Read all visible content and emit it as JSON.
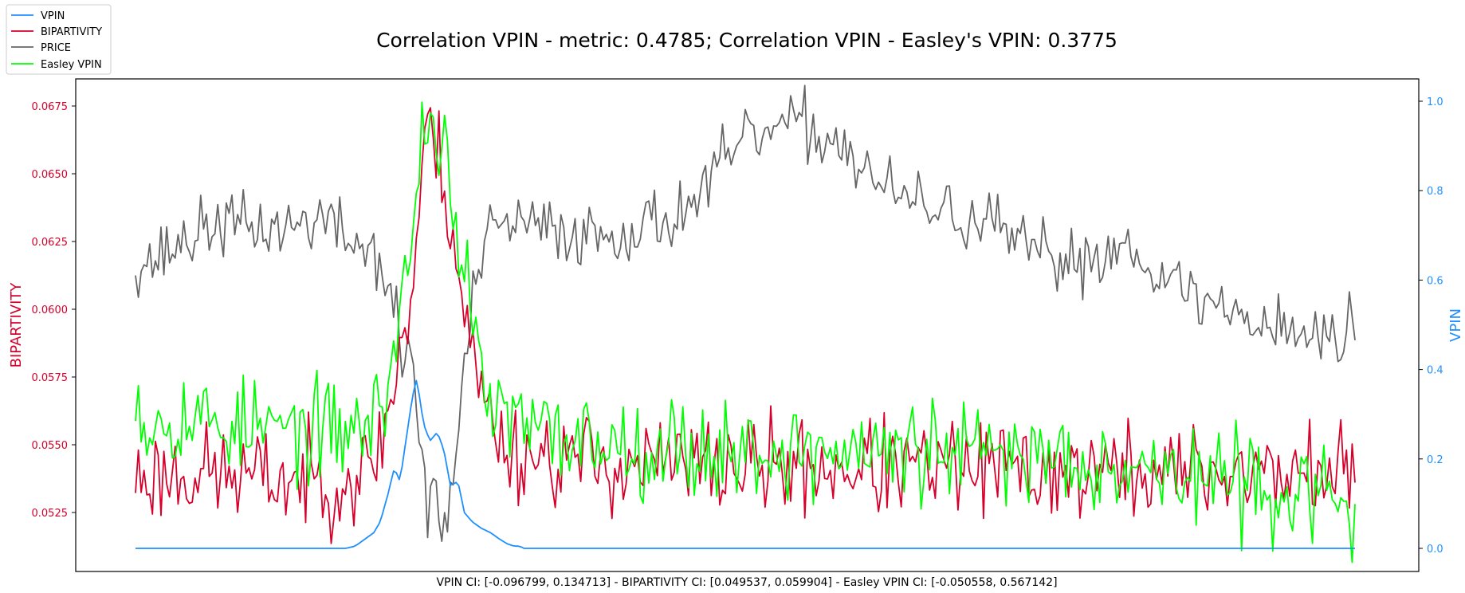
{
  "chart_data": {
    "type": "line",
    "title": "Correlation VPIN - metric: 0.4785; Correlation VPIN - Easley's VPIN: 0.3775",
    "xlabel": "VPIN CI: [-0.096799, 0.134713] - BIPARTIVITY CI: [0.049537, 0.059904] - Easley VPIN CI: [-0.050558, 0.567142]",
    "ylabel_left": "BIPARTIVITY",
    "ylabel_right": "VPIN",
    "ylim_left": [
      0.051,
      0.0685
    ],
    "ylim_right": [
      -0.05,
      1.05
    ],
    "yticks_left": [
      "0.0525",
      "0.0550",
      "0.0575",
      "0.0600",
      "0.0625",
      "0.0650",
      "0.0675"
    ],
    "yticks_right": [
      "0.0",
      "0.2",
      "0.4",
      "0.6",
      "0.8",
      "1.0"
    ],
    "x_range": [
      0,
      1000
    ],
    "legend_position": "upper-left (outside, above axes)",
    "grid": false,
    "series": [
      {
        "name": "VPIN",
        "color": "#1f8fff",
        "axis": "right",
        "anchors": [
          [
            0,
            0
          ],
          [
            225,
            0
          ],
          [
            235,
            0.005
          ],
          [
            245,
            0.02
          ],
          [
            255,
            0.035
          ],
          [
            262,
            0.06
          ],
          [
            270,
            0.12
          ],
          [
            277,
            0.18
          ],
          [
            283,
            0.15
          ],
          [
            290,
            0.25
          ],
          [
            295,
            0.32
          ],
          [
            300,
            0.38
          ],
          [
            304,
            0.34
          ],
          [
            308,
            0.28
          ],
          [
            315,
            0.24
          ],
          [
            323,
            0.26
          ],
          [
            330,
            0.22
          ],
          [
            337,
            0.14
          ],
          [
            345,
            0.15
          ],
          [
            352,
            0.08
          ],
          [
            360,
            0.06
          ],
          [
            370,
            0.045
          ],
          [
            380,
            0.035
          ],
          [
            390,
            0.02
          ],
          [
            398,
            0.01
          ],
          [
            405,
            0.005
          ],
          [
            412,
            0.005
          ],
          [
            414,
            0
          ],
          [
            1000,
            0
          ]
        ]
      },
      {
        "name": "BIPARTIVITY",
        "color": "#d6002b",
        "axis": "left",
        "anchors": [
          [
            0,
            0.0538
          ],
          [
            60,
            0.054
          ],
          [
            120,
            0.0538
          ],
          [
            180,
            0.0537
          ],
          [
            220,
            0.0537
          ],
          [
            250,
            0.054
          ],
          [
            270,
            0.056
          ],
          [
            285,
            0.059
          ],
          [
            295,
            0.06
          ],
          [
            305,
            0.0645
          ],
          [
            315,
            0.067
          ],
          [
            325,
            0.0655
          ],
          [
            335,
            0.064
          ],
          [
            345,
            0.0615
          ],
          [
            355,
            0.0595
          ],
          [
            365,
            0.0575
          ],
          [
            380,
            0.056
          ],
          [
            400,
            0.0548
          ],
          [
            500,
            0.0543
          ],
          [
            700,
            0.0542
          ],
          [
            1000,
            0.054
          ]
        ],
        "noise": 0.0009
      },
      {
        "name": "PRICE",
        "color": "#666666",
        "axis": "left",
        "anchors": [
          [
            0,
            0.0618
          ],
          [
            20,
            0.0618
          ],
          [
            50,
            0.0625
          ],
          [
            90,
            0.0632
          ],
          [
            130,
            0.063
          ],
          [
            160,
            0.063
          ],
          [
            200,
            0.0634
          ],
          [
            220,
            0.0628
          ],
          [
            240,
            0.0623
          ],
          [
            255,
            0.0622
          ],
          [
            265,
            0.0615
          ],
          [
            272,
            0.0605
          ],
          [
            280,
            0.0595
          ],
          [
            288,
            0.0575
          ],
          [
            295,
            0.059
          ],
          [
            300,
            0.057
          ],
          [
            305,
            0.0545
          ],
          [
            312,
            0.0525
          ],
          [
            318,
            0.054
          ],
          [
            325,
            0.0525
          ],
          [
            330,
            0.0515
          ],
          [
            338,
            0.0535
          ],
          [
            345,
            0.055
          ],
          [
            352,
            0.058
          ],
          [
            360,
            0.06
          ],
          [
            368,
            0.0615
          ],
          [
            380,
            0.0628
          ],
          [
            400,
            0.0632
          ],
          [
            430,
            0.063
          ],
          [
            470,
            0.0628
          ],
          [
            500,
            0.0628
          ],
          [
            540,
            0.063
          ],
          [
            580,
            0.0635
          ],
          [
            610,
            0.0645
          ],
          [
            640,
            0.0658
          ],
          [
            670,
            0.0665
          ],
          [
            710,
            0.0668
          ],
          [
            730,
            0.0665
          ],
          [
            760,
            0.066
          ],
          [
            790,
            0.0648
          ],
          [
            820,
            0.064
          ],
          [
            850,
            0.0638
          ],
          [
            890,
            0.0633
          ],
          [
            920,
            0.063
          ],
          [
            950,
            0.0622
          ],
          [
            970,
            0.062
          ],
          [
            990,
            0.0618
          ],
          [
            1000,
            0.0618
          ],
          [
            1030,
            0.062
          ],
          [
            1070,
            0.0625
          ],
          [
            1100,
            0.061
          ],
          [
            1140,
            0.0604
          ],
          [
            1180,
            0.0598
          ],
          [
            1220,
            0.0595
          ],
          [
            1260,
            0.059
          ],
          [
            1290,
            0.0587
          ],
          [
            1300,
            0.0598
          ],
          [
            1305,
            0.059
          ]
        ],
        "noise": 0.0006
      },
      {
        "name": "Easley VPIN",
        "color": "#00ff00",
        "axis": "right",
        "anchors": [
          [
            0,
            0.4
          ],
          [
            8,
            0.28
          ],
          [
            40,
            0.3
          ],
          [
            120,
            0.27
          ],
          [
            200,
            0.26
          ],
          [
            240,
            0.27
          ],
          [
            260,
            0.3
          ],
          [
            275,
            0.42
          ],
          [
            285,
            0.55
          ],
          [
            295,
            0.68
          ],
          [
            305,
            0.9
          ],
          [
            315,
            0.97
          ],
          [
            325,
            0.94
          ],
          [
            335,
            0.85
          ],
          [
            345,
            0.7
          ],
          [
            355,
            0.58
          ],
          [
            365,
            0.42
          ],
          [
            380,
            0.32
          ],
          [
            420,
            0.26
          ],
          [
            600,
            0.22
          ],
          [
            1000,
            0.21
          ],
          [
            1305,
            0.1
          ]
        ],
        "noise": 0.055
      }
    ]
  }
}
